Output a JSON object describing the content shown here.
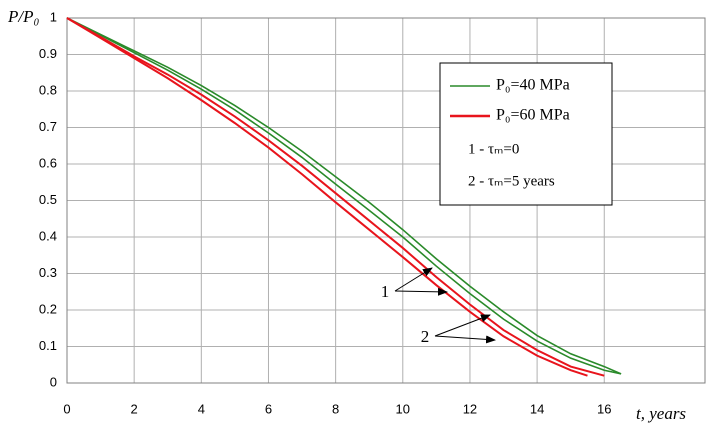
{
  "chart_data": {
    "type": "line",
    "y_label": "P/P₀",
    "x_label": "t, years",
    "xlim": [
      0,
      19
    ],
    "xticks": [
      0,
      2,
      4,
      6,
      8,
      10,
      12,
      14,
      16
    ],
    "ylim": [
      0,
      1
    ],
    "yticks": [
      0,
      0.1,
      0.2,
      0.3,
      0.4,
      0.5,
      0.6,
      0.7,
      0.8,
      0.9,
      1
    ],
    "grid": true,
    "legend": "upper right",
    "series": [
      {
        "name": "P₀=40 MPa",
        "color": "#2a8a2a",
        "curves": [
          {
            "x": [
              0,
              1,
              2,
              3,
              4,
              5,
              6,
              7,
              8,
              9,
              10,
              11,
              12,
              13,
              14,
              15,
              16,
              16.5
            ],
            "values": [
              1,
              0.955,
              0.91,
              0.865,
              0.815,
              0.76,
              0.7,
              0.635,
              0.565,
              0.495,
              0.42,
              0.34,
              0.265,
              0.195,
              0.13,
              0.08,
              0.045,
              0.025
            ]
          },
          {
            "x": [
              0,
              1,
              2,
              3,
              4,
              5,
              6,
              7,
              8,
              9,
              10,
              11,
              12,
              13,
              14,
              15,
              16,
              16.5
            ],
            "values": [
              1,
              0.953,
              0.905,
              0.857,
              0.805,
              0.748,
              0.685,
              0.618,
              0.545,
              0.473,
              0.4,
              0.32,
              0.245,
              0.175,
              0.115,
              0.068,
              0.035,
              0.025
            ]
          }
        ]
      },
      {
        "name": "P₀=60 MPa",
        "color": "#e8141c",
        "curves": [
          {
            "x": [
              0,
              1,
              2,
              3,
              4,
              5,
              6,
              7,
              8,
              9,
              10,
              11,
              12,
              13,
              14,
              15,
              16
            ],
            "values": [
              1,
              0.948,
              0.895,
              0.845,
              0.79,
              0.73,
              0.665,
              0.595,
              0.52,
              0.445,
              0.37,
              0.29,
              0.215,
              0.145,
              0.09,
              0.045,
              0.02
            ]
          },
          {
            "x": [
              0,
              1,
              2,
              3,
              4,
              5,
              6,
              7,
              8,
              9,
              10,
              11,
              12,
              13,
              14,
              15,
              15.5
            ],
            "values": [
              1,
              0.945,
              0.89,
              0.835,
              0.775,
              0.712,
              0.645,
              0.572,
              0.495,
              0.42,
              0.345,
              0.268,
              0.195,
              0.128,
              0.075,
              0.035,
              0.02
            ]
          }
        ]
      }
    ],
    "notes": [
      "1 - τₘ=0",
      "2 - τₘ=5 years"
    ],
    "annotations": [
      "1",
      "2"
    ]
  }
}
